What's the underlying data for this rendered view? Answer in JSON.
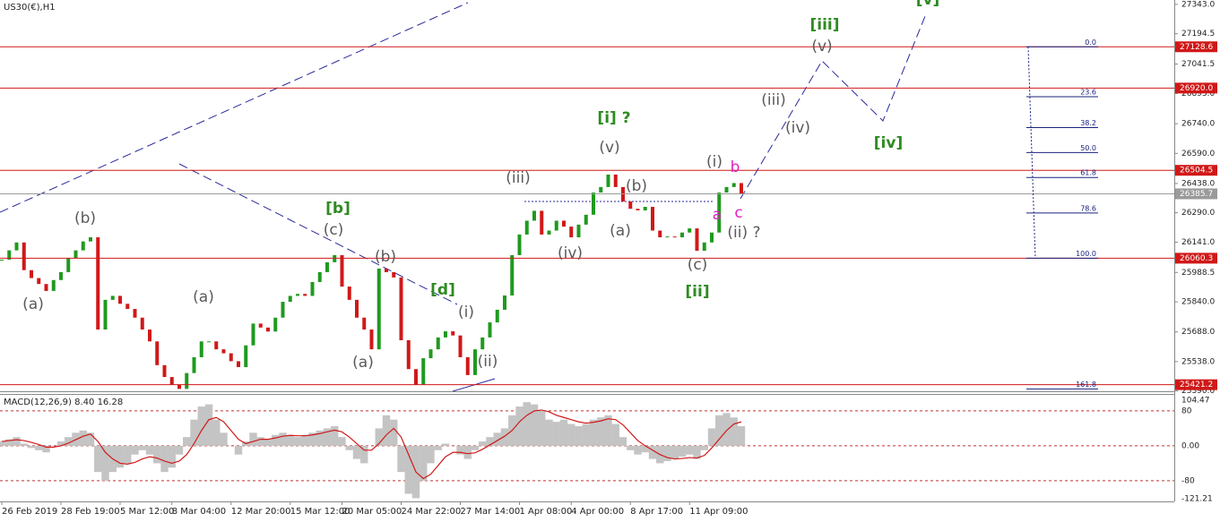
{
  "chart_data": [
    {
      "type": "candlestick",
      "title": "US30(€),H1",
      "categories": [
        "26 Feb 2019",
        null,
        null,
        null,
        null,
        null,
        null,
        null,
        "28 Feb 19:00",
        null,
        null,
        null,
        null,
        null,
        null,
        null,
        "5 Mar 12:00",
        null,
        null,
        null,
        null,
        null,
        null,
        "8 Mar 04:00",
        null,
        null,
        null,
        null,
        null,
        null,
        null,
        "12 Mar 20:00",
        null,
        null,
        null,
        null,
        null,
        null,
        null,
        "15 Mar 12:00",
        null,
        null,
        null,
        null,
        null,
        null,
        "20 Mar 05:00",
        null,
        null,
        null,
        null,
        null,
        null,
        null,
        "24 Mar 22:00",
        null,
        null,
        null,
        null,
        null,
        null,
        null,
        "27 Mar 14:00",
        null,
        null,
        null,
        null,
        null,
        null,
        null,
        "1 Apr 08:00",
        null,
        null,
        null,
        null,
        null,
        null,
        "4 Apr 00:00",
        null,
        null,
        null,
        null,
        null,
        null,
        null,
        "8 Apr 17:00",
        null,
        null,
        null,
        null,
        null,
        null,
        null,
        "11 Apr 09:00",
        null,
        null,
        null,
        null,
        null,
        null,
        null
      ],
      "values": [
        26053,
        26100,
        26140,
        26000,
        25960,
        25930,
        25895,
        25950,
        25990,
        26060,
        26100,
        26145,
        26166,
        25700,
        25850,
        25870,
        25830,
        25804,
        25760,
        25700,
        25640,
        25520,
        25460,
        25420,
        25400,
        25480,
        25560,
        25640,
        25640,
        25600,
        25580,
        25540,
        25510,
        25620,
        25730,
        25710,
        25690,
        25760,
        25840,
        25870,
        25880,
        25870,
        25940,
        25990,
        26040,
        26076,
        25917,
        25850,
        25760,
        25700,
        25600,
        26008,
        25990,
        25963,
        25646,
        25500,
        25420,
        25555,
        25600,
        25660,
        25691,
        25670,
        25560,
        25470,
        25600,
        25660,
        25736,
        25800,
        25872,
        26076,
        26180,
        26250,
        26300,
        26180,
        26200,
        26250,
        26220,
        26166,
        26230,
        26280,
        26392,
        26420,
        26483,
        26420,
        26347,
        26310,
        26302,
        26320,
        26200,
        26166,
        26170,
        26166,
        26190,
        26211,
        26098,
        26140,
        26190,
        26392,
        26420,
        26440,
        26386
      ],
      "up_color": "#1f9a1f",
      "down_color": "#d01818",
      "ylim": [
        25388,
        27365
      ],
      "yticks": [
        {
          "value": 27343,
          "label": "27343.0"
        },
        {
          "value": 27194.5,
          "label": "27194.5"
        },
        {
          "value": 27041.5,
          "label": "27041.5"
        },
        {
          "value": 26893,
          "label": "26893.0"
        },
        {
          "value": 26740,
          "label": "26740.0"
        },
        {
          "value": 26590,
          "label": "26590.0"
        },
        {
          "value": 26438,
          "label": "26438.0"
        },
        {
          "value": 26290,
          "label": "26290.0"
        },
        {
          "value": 26141,
          "label": "26141.0"
        },
        {
          "value": 25988.5,
          "label": "25988.5"
        },
        {
          "value": 25840,
          "label": "25840.0"
        },
        {
          "value": 25688,
          "label": "25688.0"
        },
        {
          "value": 25538,
          "label": "25538.0"
        },
        {
          "value": 25390,
          "label": "25390.0"
        }
      ],
      "levels": [
        {
          "value": 27128.6,
          "label": "27128.6",
          "color": "#d01818"
        },
        {
          "value": 26920,
          "label": "26920.0",
          "color": "#d01818"
        },
        {
          "value": 26504.5,
          "label": "26504.5",
          "color": "#d01818"
        },
        {
          "value": 26060.3,
          "label": "26060.3",
          "color": "#d01818"
        },
        {
          "value": 25421.2,
          "label": "25421.2",
          "color": "#d01818"
        },
        {
          "value": 26385.7,
          "label": "26385.7",
          "color": "#9a9a9a"
        }
      ],
      "fib": {
        "color": "#1a237e",
        "ticks": [
          {
            "value": 0,
            "label": "0.0"
          },
          23.6,
          38.2,
          {
            "value": 50,
            "label": "50.0"
          },
          61.8,
          78.6,
          {
            "value": 100,
            "label": "100.0"
          },
          161.8
        ]
      },
      "annotations": [
        {
          "text": "[iii]",
          "color": "#2e8b22"
        },
        {
          "text": "[v]",
          "color": "#2e8b22"
        },
        {
          "text": "(v)",
          "color": "#5a5a5a"
        },
        {
          "text": "(iii)",
          "color": "#5a5a5a"
        },
        {
          "text": "(iv)",
          "color": "#5a5a5a"
        },
        {
          "text": "[iv]",
          "color": "#2e8b22"
        },
        {
          "text": "[i] ?",
          "color": "#2e8b22"
        },
        {
          "text": "(v)",
          "color": "#5a5a5a"
        },
        {
          "text": "(i)",
          "color": "#5a5a5a"
        },
        {
          "text": "b",
          "color": "#e020c0"
        },
        {
          "text": "a",
          "color": "#e020c0"
        },
        {
          "text": "c",
          "color": "#e020c0"
        },
        {
          "text": "(ii) ?",
          "color": "#5a5a5a"
        },
        {
          "text": "(iii)",
          "color": "#5a5a5a"
        },
        {
          "text": "(b)",
          "color": "#5a5a5a"
        },
        {
          "text": "(a)",
          "color": "#5a5a5a"
        },
        {
          "text": "(iv)",
          "color": "#5a5a5a"
        },
        {
          "text": "(c)",
          "color": "#5a5a5a"
        },
        {
          "text": "[ii]",
          "color": "#2e8b22"
        },
        {
          "text": "(b)",
          "color": "#5a5a5a"
        },
        {
          "text": "(a)",
          "color": "#5a5a5a"
        },
        {
          "text": "(a)",
          "color": "#5a5a5a"
        },
        {
          "text": "[b]",
          "color": "#2e8b22"
        },
        {
          "text": "(c)",
          "color": "#5a5a5a"
        },
        {
          "text": "(b)",
          "color": "#5a5a5a"
        },
        {
          "text": "[d]",
          "color": "#2e8b22"
        },
        {
          "text": "(i)",
          "color": "#5a5a5a"
        },
        {
          "text": "(a)",
          "color": "#5a5a5a"
        },
        {
          "text": "(ii)",
          "color": "#5a5a5a"
        }
      ]
    },
    {
      "type": "macd",
      "title": "MACD(12,26,9) 8.40 16.28",
      "series": [
        {
          "color": "#c4c4c4",
          "values": [
            10,
            15,
            20,
            5,
            -5,
            -10,
            -15,
            0,
            10,
            20,
            30,
            35,
            30,
            -60,
            -80,
            -60,
            -50,
            -40,
            -20,
            -10,
            -20,
            -40,
            -60,
            -50,
            -20,
            20,
            60,
            90,
            95,
            60,
            30,
            0,
            -20,
            10,
            30,
            20,
            15,
            25,
            30,
            25,
            20,
            25,
            30,
            35,
            40,
            45,
            20,
            -10,
            -30,
            -40,
            0,
            40,
            70,
            60,
            -60,
            -110,
            -120,
            -80,
            -40,
            -10,
            5,
            0,
            -20,
            -30,
            -10,
            10,
            20,
            30,
            40,
            70,
            90,
            100,
            95,
            80,
            60,
            55,
            60,
            50,
            45,
            50,
            60,
            65,
            70,
            50,
            20,
            -10,
            -20,
            -15,
            -30,
            -40,
            -35,
            -30,
            -25,
            -20,
            -30,
            -10,
            40,
            70,
            75,
            65,
            45
          ]
        },
        {
          "color": "#d01818",
          "values": [
            10,
            12,
            14,
            12,
            8,
            3,
            -3,
            -3,
            0,
            6,
            14,
            22,
            27,
            10,
            -15,
            -30,
            -40,
            -42,
            -38,
            -30,
            -25,
            -28,
            -35,
            -40,
            -35,
            -20,
            5,
            35,
            60,
            65,
            55,
            35,
            15,
            5,
            10,
            15,
            15,
            18,
            22,
            24,
            23,
            23,
            25,
            28,
            32,
            36,
            32,
            20,
            5,
            -10,
            -10,
            5,
            25,
            40,
            20,
            -20,
            -60,
            -75,
            -65,
            -45,
            -25,
            -15,
            -15,
            -18,
            -16,
            -8,
            2,
            12,
            22,
            35,
            55,
            70,
            80,
            82,
            78,
            70,
            65,
            60,
            55,
            52,
            54,
            57,
            62,
            60,
            48,
            30,
            12,
            0,
            -10,
            -20,
            -27,
            -30,
            -29,
            -27,
            -28,
            -22,
            -5,
            15,
            35,
            50,
            55
          ]
        }
      ],
      "ylim": [
        -121.21,
        104.47
      ],
      "yticks": [
        104.47,
        80,
        {
          "value": 0,
          "label": "0.00"
        },
        -80,
        -121.21
      ]
    }
  ]
}
